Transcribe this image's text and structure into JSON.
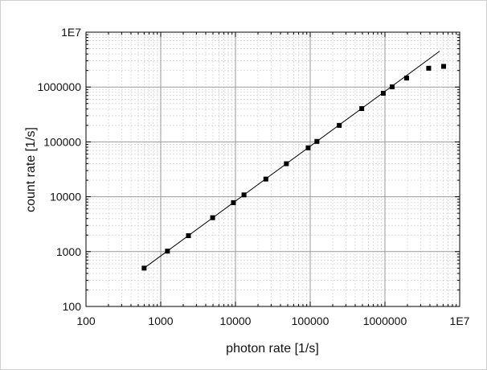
{
  "chart_data": {
    "type": "scatter",
    "title": "",
    "xlabel": "photon rate [1/s]",
    "ylabel": "count rate [1/s]",
    "x_scale": "log",
    "y_scale": "log",
    "xlim": [
      100,
      10000000
    ],
    "ylim": [
      100,
      10000000
    ],
    "grid": true,
    "legend": "none",
    "x_ticks": [
      {
        "value": 100,
        "label": "100"
      },
      {
        "value": 1000,
        "label": "1000"
      },
      {
        "value": 10000,
        "label": "10000"
      },
      {
        "value": 100000,
        "label": "100000"
      },
      {
        "value": 1000000,
        "label": "1000000"
      },
      {
        "value": 10000000,
        "label": "1E7"
      }
    ],
    "y_ticks": [
      {
        "value": 100,
        "label": "100"
      },
      {
        "value": 1000,
        "label": "1000"
      },
      {
        "value": 10000,
        "label": "10000"
      },
      {
        "value": 100000,
        "label": "100000"
      },
      {
        "value": 1000000,
        "label": "1000000"
      },
      {
        "value": 10000000,
        "label": "1E7"
      }
    ],
    "points": [
      {
        "x": 600,
        "y": 500
      },
      {
        "x": 1230,
        "y": 1020
      },
      {
        "x": 2350,
        "y": 1950
      },
      {
        "x": 4950,
        "y": 4150
      },
      {
        "x": 9400,
        "y": 7800
      },
      {
        "x": 13000,
        "y": 10800
      },
      {
        "x": 25500,
        "y": 21000
      },
      {
        "x": 48000,
        "y": 40000
      },
      {
        "x": 94000,
        "y": 78000
      },
      {
        "x": 123000,
        "y": 102000
      },
      {
        "x": 245000,
        "y": 200000
      },
      {
        "x": 490000,
        "y": 405000
      },
      {
        "x": 950000,
        "y": 770000
      },
      {
        "x": 1250000,
        "y": 1010000
      },
      {
        "x": 1950000,
        "y": 1460000
      },
      {
        "x": 3850000,
        "y": 2200000
      },
      {
        "x": 6100000,
        "y": 2380000
      }
    ],
    "fit_line": {
      "x": [
        600,
        5400000
      ],
      "y": [
        500,
        4500000
      ]
    },
    "colors": {
      "background": "#ffffff",
      "plot_border": "#000000",
      "major_grid": "#9a9a9a",
      "minor_grid": "#d0d0d0",
      "marker": "#000000",
      "line": "#000000"
    }
  }
}
